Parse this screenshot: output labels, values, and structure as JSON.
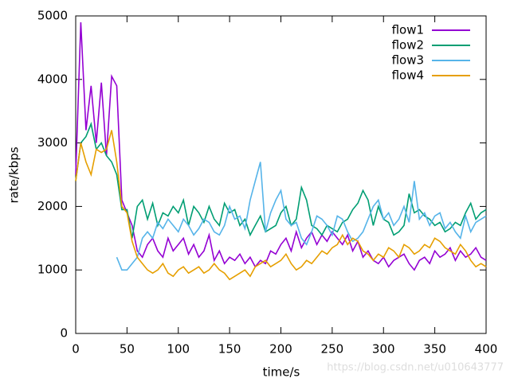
{
  "chart_data": {
    "type": "line",
    "xlabel": "time/s",
    "ylabel": "rate/kbps",
    "watermark": "https://blog.csdn.net/u010643777",
    "x": [
      0,
      5,
      10,
      15,
      20,
      25,
      30,
      35,
      40,
      45,
      50,
      55,
      60,
      65,
      70,
      75,
      80,
      85,
      90,
      95,
      100,
      105,
      110,
      115,
      120,
      125,
      130,
      135,
      140,
      145,
      150,
      155,
      160,
      165,
      170,
      175,
      180,
      185,
      190,
      195,
      200,
      205,
      210,
      215,
      220,
      225,
      230,
      235,
      240,
      245,
      250,
      255,
      260,
      265,
      270,
      275,
      280,
      285,
      290,
      295,
      300,
      305,
      310,
      315,
      320,
      325,
      330,
      335,
      340,
      345,
      350,
      355,
      360,
      365,
      370,
      375,
      380,
      385,
      390,
      395,
      400
    ],
    "series": [
      {
        "name": "flow1",
        "color": "#9400d3",
        "values": [
          2500,
          4900,
          3200,
          3900,
          3000,
          3950,
          2800,
          4050,
          3900,
          2100,
          1900,
          1700,
          1300,
          1200,
          1400,
          1500,
          1300,
          1200,
          1500,
          1300,
          1400,
          1500,
          1250,
          1400,
          1200,
          1300,
          1550,
          1150,
          1300,
          1100,
          1200,
          1150,
          1250,
          1100,
          1200,
          1050,
          1150,
          1100,
          1300,
          1250,
          1400,
          1500,
          1300,
          1600,
          1350,
          1500,
          1600,
          1400,
          1550,
          1450,
          1600,
          1500,
          1400,
          1550,
          1300,
          1450,
          1200,
          1300,
          1150,
          1100,
          1200,
          1050,
          1150,
          1200,
          1250,
          1100,
          1000,
          1150,
          1200,
          1100,
          1300,
          1200,
          1250,
          1350,
          1150,
          1300,
          1200,
          1250,
          1350,
          1200,
          1150
        ]
      },
      {
        "name": "flow2",
        "color": "#009e73",
        "values": [
          2400,
          3000,
          3100,
          3300,
          2900,
          3000,
          2800,
          2700,
          2500,
          1950,
          1950,
          1500,
          2000,
          2100,
          1800,
          2050,
          1700,
          1900,
          1850,
          2000,
          1900,
          2100,
          1700,
          2000,
          1900,
          1750,
          2000,
          1800,
          1700,
          2050,
          1900,
          1950,
          1700,
          1800,
          1550,
          1700,
          1850,
          1600,
          1650,
          1700,
          1900,
          2000,
          1700,
          1800,
          2300,
          2100,
          1700,
          1650,
          1550,
          1700,
          1650,
          1600,
          1750,
          1800,
          1950,
          2050,
          2250,
          2100,
          1700,
          2000,
          1800,
          1750,
          1550,
          1600,
          1700,
          2200,
          1900,
          1950,
          1850,
          1800,
          1700,
          1750,
          1600,
          1650,
          1750,
          1700,
          1900,
          2050,
          1800,
          1900,
          1950
        ]
      },
      {
        "name": "flow3",
        "color": "#56b4e9",
        "values": [
          null,
          null,
          null,
          null,
          null,
          null,
          null,
          null,
          1200,
          1000,
          1000,
          1100,
          1200,
          1500,
          1600,
          1500,
          1750,
          1650,
          1800,
          1700,
          1600,
          1800,
          1700,
          1550,
          1650,
          1800,
          1750,
          1600,
          1550,
          1700,
          2000,
          1800,
          1850,
          1650,
          2100,
          2400,
          2700,
          1600,
          1900,
          2100,
          2250,
          1800,
          1700,
          1750,
          1500,
          1400,
          1600,
          1850,
          1800,
          1700,
          1550,
          1850,
          1800,
          1600,
          1450,
          1500,
          1600,
          1800,
          2000,
          2100,
          1800,
          1900,
          1700,
          1800,
          2000,
          1750,
          2400,
          1800,
          1900,
          1700,
          1850,
          1900,
          1650,
          1750,
          1600,
          1500,
          1850,
          1600,
          1750,
          1800,
          1850
        ]
      },
      {
        "name": "flow4",
        "color": "#e69f00",
        "values": [
          2400,
          3000,
          2700,
          2500,
          2900,
          2850,
          2900,
          3200,
          2700,
          2000,
          1900,
          1450,
          1200,
          1100,
          1000,
          950,
          1000,
          1100,
          950,
          900,
          1000,
          1050,
          950,
          1000,
          1050,
          950,
          1000,
          1100,
          1000,
          950,
          850,
          900,
          950,
          1000,
          900,
          1050,
          1100,
          1150,
          1050,
          1100,
          1150,
          1250,
          1100,
          1000,
          1050,
          1150,
          1100,
          1200,
          1300,
          1250,
          1350,
          1400,
          1550,
          1400,
          1500,
          1450,
          1300,
          1250,
          1150,
          1250,
          1200,
          1350,
          1300,
          1200,
          1400,
          1350,
          1250,
          1300,
          1400,
          1350,
          1500,
          1450,
          1350,
          1300,
          1250,
          1400,
          1300,
          1150,
          1050,
          1100,
          1050
        ]
      }
    ],
    "xlim": [
      0,
      400
    ],
    "xticks": [
      0,
      50,
      100,
      150,
      200,
      250,
      300,
      350,
      400
    ],
    "ylim": [
      0,
      5000
    ],
    "yticks": [
      0,
      1000,
      2000,
      3000,
      4000,
      5000
    ],
    "legend": "top-right"
  }
}
